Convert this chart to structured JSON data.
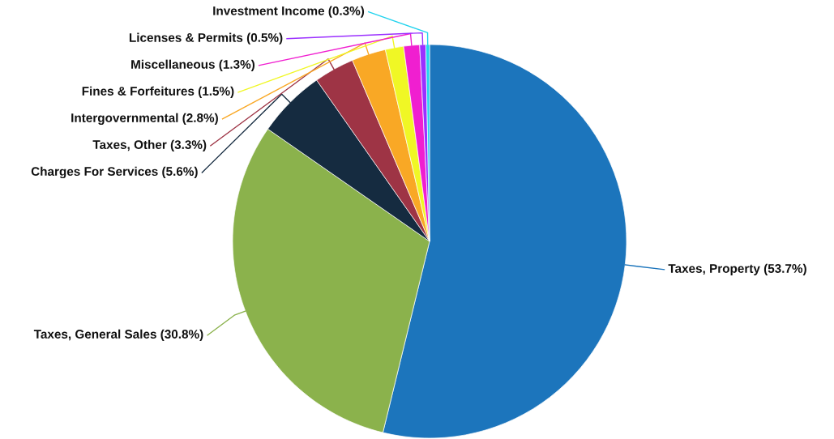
{
  "chart_data": {
    "type": "pie",
    "categories": [
      "Taxes, Property",
      "Taxes, General Sales",
      "Charges For Services",
      "Taxes, Other",
      "Intergovernmental",
      "Fines & Forfeitures",
      "Miscellaneous",
      "Licenses & Permits",
      "Investment Income"
    ],
    "values": [
      53.7,
      30.8,
      5.6,
      3.3,
      2.8,
      1.5,
      1.3,
      0.5,
      0.3
    ],
    "value_labels": [
      "(53.7%)",
      "(30.8%)",
      "(5.6%)",
      "(3.3%)",
      "(2.8%)",
      "(1.5%)",
      "(1.3%)",
      "(0.5%)",
      "(0.3%)"
    ],
    "colors": [
      "#1c75bc",
      "#8bb24c",
      "#152b40",
      "#9e3445",
      "#f9a825",
      "#f0f725",
      "#f01fd0",
      "#9b30ff",
      "#22d3ee"
    ],
    "legend": false
  }
}
